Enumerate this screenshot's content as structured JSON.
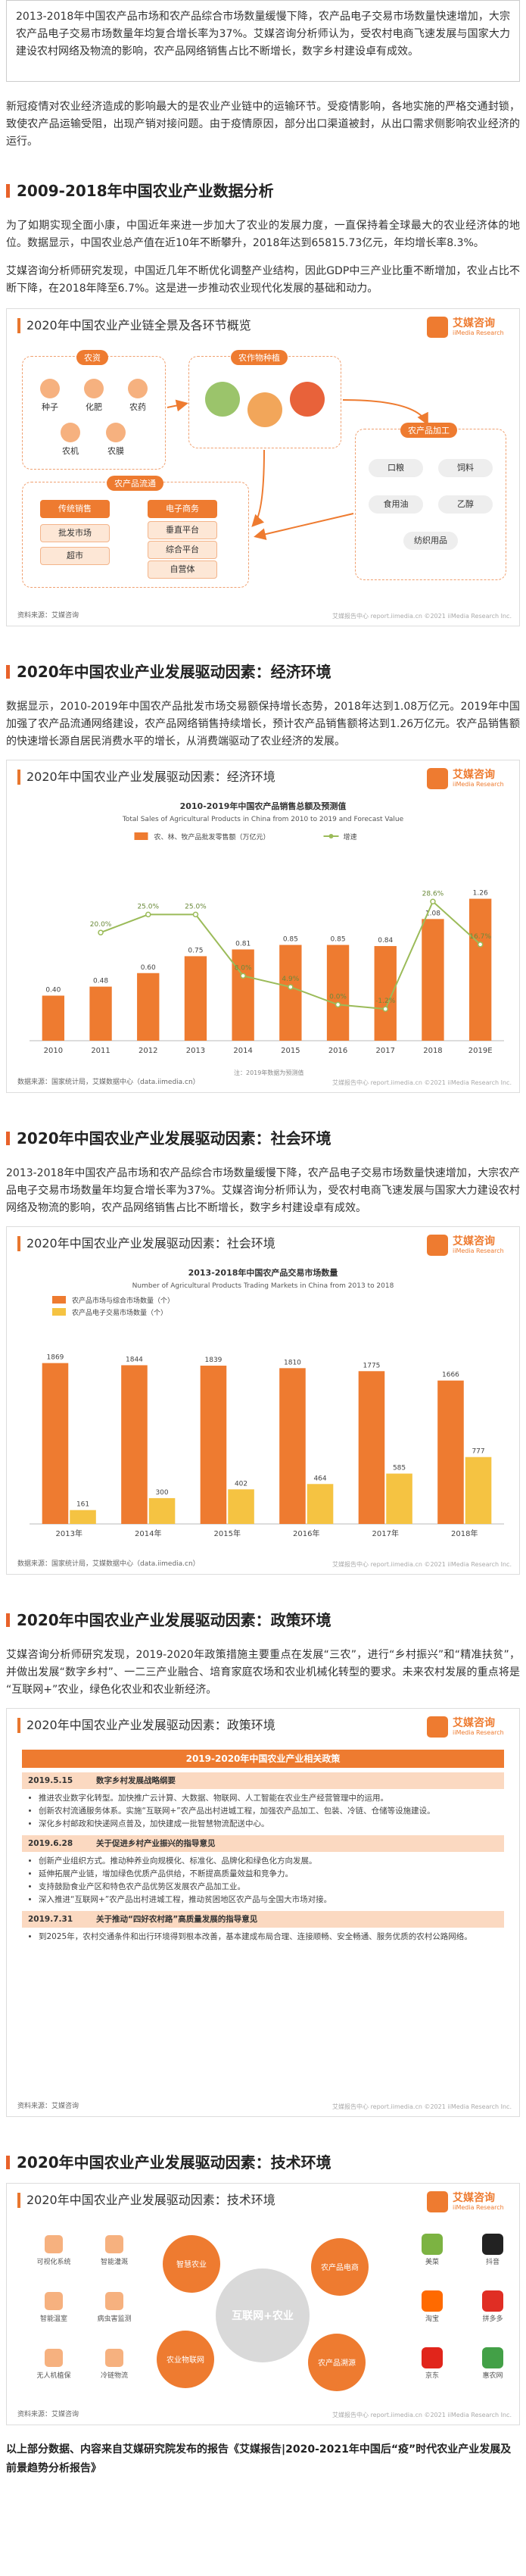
{
  "intro": "2013-2018年中国农产品市场和农产品综合市场数量缓慢下降，农产品电子交易市场数量快速增加，大宗农产品电子交易市场数量年均复合增长率为37%。艾媒咨询分析师认为，受农村电商飞速发展与国家大力建设农村网络及物流的影响，农产品网络销售占比不断增长，数字乡村建设卓有成效。",
  "covid_paragraph": "新冠疫情对农业经济造成的影响最大的是农业产业链中的运输环节。受疫情影响，各地实施的严格交通封锁，致使农产品运输受阻，出现产销对接问题。由于疫情原因，部分出口渠道被封，从出口需求侧影响农业经济的运行。",
  "brand": {
    "logo_cn": "艾媒咨询",
    "logo_en": "iiMedia Research",
    "footer": "艾媒报告中心 report.iimedia.cn ©2021 iiMedia Research Inc."
  },
  "section_1": {
    "heading": "2009-2018年中国农业产业数据分析",
    "paragraphs": [
      "为了如期实现全面小康，中国近年来进一步加大了农业的发展力度，一直保持着全球最大的农业经济体的地位。数据显示，中国农业总产值在近10年不断攀升，2018年达到65815.73亿元，年均增长率8.3%。",
      "艾媒咨询分析师研究发现，中国近几年不断优化调整产业结构，因此GDP中三产业比重不断增加，农业占比不断下降，在2018年降至6.7%。这是进一步推动农业现代化发展的基础和动力。"
    ],
    "figure": {
      "title": "2020年中国农业产业链全景及各环节概览",
      "chain": {
        "inputs": {
          "label": "农资",
          "items": [
            "种子",
            "化肥",
            "农药",
            "农机",
            "农膜"
          ]
        },
        "planting": {
          "label": "农作物种植"
        },
        "circulation": {
          "label": "农产品流通",
          "traditional": {
            "label": "传统销售",
            "items": [
              "批发市场",
              "超市"
            ]
          },
          "ecommerce": {
            "label": "电子商务",
            "items": [
              "垂直平台",
              "综合平台",
              "自营体"
            ]
          }
        },
        "processing": {
          "label": "农产品加工",
          "items": [
            "口粮",
            "饲料",
            "食用油",
            "乙醇",
            "纺织用品"
          ]
        }
      },
      "source": "资料来源：艾媒咨询"
    }
  },
  "section_2": {
    "heading": "2020年中国农业产业发展驱动因素：经济环境",
    "paragraphs": [
      "数据显示，2010-2019年中国农产品批发市场交易额保持增长态势，2018年达到1.08万亿元。2019年中国加强了农产品流通网络建设，农产品网络销售持续增长，预计农产品销售额将达到1.26万亿元。农产品销售额的快速增长源自居民消费水平的增长，从消费端驱动了农业经济的发展。"
    ],
    "figure": {
      "title": "2020年中国农业产业发展驱动因素：经济环境",
      "source": "数据来源：国家统计局，艾媒数据中心（data.iimedia.cn）",
      "note": "注：2019年数据为预测值"
    }
  },
  "section_3": {
    "heading": "2020年中国农业产业发展驱动因素：社会环境",
    "paragraphs": [
      "2013-2018年中国农产品市场和农产品综合市场数量缓慢下降，农产品电子交易市场数量快速增加，大宗农产品电子交易市场数量年均复合增长率为37%。艾媒咨询分析师认为，受农村电商飞速发展与国家大力建设农村网络及物流的影响，农产品网络销售占比不断增长，数字乡村建设卓有成效。"
    ],
    "figure": {
      "title": "2020年中国农业产业发展驱动因素：社会环境",
      "source": "数据来源：国家统计局，艾媒数据中心（data.iimedia.cn）"
    }
  },
  "section_4": {
    "heading": "2020年中国农业产业发展驱动因素：政策环境",
    "paragraphs": [
      "艾媒咨询分析师研究发现，2019-2020年政策措施主要重点在发展“三农”，进行“乡村振兴”和“精准扶贫”，并做出发展“数字乡村”、一二三产业融合、培育家庭农场和农业机械化转型的要求。未来农村发展的重点将是“互联网+”农业，绿色化农业和农业新经济。"
    ],
    "figure": {
      "title": "2020年中国农业产业发展驱动因素：政策环境",
      "table": {
        "title": "2019-2020年中国农业产业相关政策",
        "rows": [
          {
            "date": "2019.5.15",
            "policy": "数字乡村发展战略纲要",
            "points": [
              "推进农业数字化转型。加快推广云计算、大数据、物联网、人工智能在农业生产经营管理中的运用。",
              "创新农村流通服务体系。实施“互联网+”农产品出村进城工程，加强农产品加工、包装、冷链、仓储等设施建设。",
              "深化乡村邮政和快递网点普及，加快建成一批智慧物流配送中心。"
            ]
          },
          {
            "date": "2019.6.28",
            "policy": "关于促进乡村产业振兴的指导意见",
            "points": [
              "创新产业组织方式。推动种养业向规模化、标准化、品牌化和绿色化方向发展。",
              "延伸拓展产业链，增加绿色优质产品供给，不断提高质量效益和竞争力。",
              "支持鼓励食业产区和特色农产品优势区发展农产品加工业。",
              "深入推进“互联网+”农产品出村进城工程，推动贫困地区农产品与全国大市场对接。"
            ]
          },
          {
            "date": "2019.7.31",
            "policy": "关于推动“四好农村路”高质量发展的指导意见",
            "points": [
              "到2025年，农村交通条件和出行环境得到根本改善，基本建成布局合理、连接顺畅、安全畅通、服务优质的农村公路网络。"
            ]
          }
        ]
      },
      "source": "资料来源：艾媒咨询"
    }
  },
  "section_5": {
    "heading": "2020年中国农业产业发展驱动因素：技术环境",
    "figure": {
      "title": "2020年中国农业产业发展驱动因素：技术环境",
      "center": "互联网+农业",
      "themes": [
        "智慧农业",
        "农业物联网",
        "农产品电商",
        "农产品溯源"
      ],
      "tools": [
        "可视化系统",
        "智能灌溉",
        "智能温室",
        "病虫害监测",
        "无人机植保",
        "冷链物流"
      ],
      "platforms": [
        "美菜",
        "抖音",
        "淘宝",
        "拼多多",
        "京东",
        "惠农网"
      ],
      "source": "资料来源：艾媒咨询"
    }
  },
  "closing": "以上部分数据、内容来自艾媒研究院发布的报告《艾媒报告|2020-2021年中国后“疫”时代农业产业发展及前景趋势分析报告》",
  "chart_data": [
    {
      "type": "bar",
      "title": "2010-2019年中国农产品销售总额及预测值",
      "subtitle": "Total Sales of Agricultural Products in China from 2010 to 2019 and Forecast Value",
      "categories": [
        "2010",
        "2011",
        "2012",
        "2013",
        "2014",
        "2015",
        "2016",
        "2017",
        "2018",
        "2019E"
      ],
      "series": [
        {
          "name": "农、林、牧产品批发零售额（万亿元）",
          "color": "#ee7b30",
          "values": [
            0.4,
            0.48,
            0.6,
            0.75,
            0.81,
            0.85,
            0.85,
            0.84,
            1.08,
            1.26
          ],
          "value_labels": [
            "0.40",
            "0.48",
            "0.60",
            "0.75",
            "0.81",
            "0.85",
            "0.85",
            "0.84",
            "1.08",
            "1.26"
          ]
        },
        {
          "name": "增速",
          "type": "line",
          "axis": "y2",
          "color": "#9bbb59",
          "values": [
            null,
            20.0,
            25.0,
            25.0,
            8.0,
            4.9,
            0.0,
            -1.2,
            28.6,
            16.7
          ],
          "value_labels": [
            null,
            "20.0%",
            "25.0%",
            "25.0%",
            "8.0%",
            "4.9%",
            "0.0%",
            "-1.2%",
            "28.6%",
            "16.7%"
          ]
        }
      ],
      "ylim": [
        0,
        1.6
      ],
      "y2lim": [
        -10,
        40
      ],
      "legend": "top"
    },
    {
      "type": "bar",
      "title": "2013-2018年中国农产品交易市场数量",
      "subtitle": "Number of Agricultural Products Trading Markets in China from 2013 to 2018",
      "categories": [
        "2013年",
        "2014年",
        "2015年",
        "2016年",
        "2017年",
        "2018年"
      ],
      "series": [
        {
          "name": "农产品市场与综合市场数量（个）",
          "color": "#ee7b30",
          "values": [
            1869,
            1844,
            1839,
            1810,
            1775,
            1666
          ]
        },
        {
          "name": "农产品电子交易市场数量（个）",
          "color": "#f5c342",
          "values": [
            161,
            300,
            402,
            464,
            585,
            777
          ]
        }
      ],
      "ylim": [
        0,
        2200
      ],
      "legend": "top-left"
    }
  ]
}
